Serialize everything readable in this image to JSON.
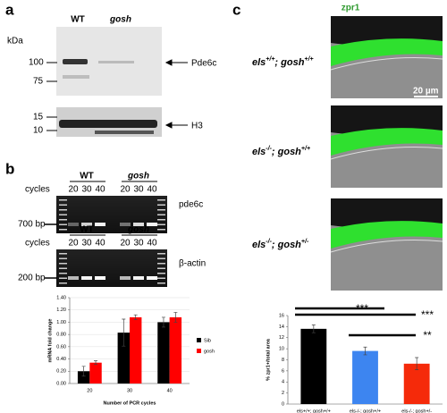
{
  "panel_labels": [
    "a",
    "b",
    "c"
  ],
  "blot": {
    "kda": "kDa",
    "lanes": [
      "WT",
      "gosh"
    ],
    "markers": [
      "100",
      "75",
      "15",
      "10"
    ],
    "bands": [
      "Pde6c",
      "H3"
    ]
  },
  "gels": [
    {
      "lanes": [
        "WT",
        "gosh"
      ],
      "cycles_label": "cycles",
      "cycles": [
        "20",
        "30",
        "40",
        "20",
        "30",
        "40"
      ],
      "marker": "700 bp",
      "gene": "pde6c"
    },
    {
      "lanes": [
        "WT",
        "gosh"
      ],
      "cycles_label": "cycles",
      "cycles": [
        "20",
        "30",
        "40",
        "20",
        "30",
        "40"
      ],
      "marker": "200 bp",
      "gene": "β-actin"
    }
  ],
  "micrographs": {
    "stain": "zpr1",
    "scale": "20 µm",
    "genotypes": [
      {
        "parts": [
          "els",
          "+/+",
          "; gosh",
          "+/+"
        ]
      },
      {
        "parts": [
          "els",
          "-/-",
          "; gosh",
          "+/+"
        ]
      },
      {
        "parts": [
          "els",
          "-/-",
          "; gosh",
          "+/-"
        ]
      }
    ]
  },
  "chart_data": [
    {
      "type": "bar",
      "y_label": "mRNA fold change",
      "x_label": "Number of PCR cycles",
      "categories": [
        "20",
        "30",
        "40"
      ],
      "series": [
        {
          "name": "Sib",
          "color": "#000000",
          "values": [
            0.2,
            0.83,
            1.0
          ],
          "errors": [
            0.08,
            0.22,
            0.08
          ]
        },
        {
          "name": "gosh",
          "color": "#ff0000",
          "values": [
            0.34,
            1.08,
            1.08
          ],
          "errors": [
            0.03,
            0.04,
            0.08
          ]
        }
      ],
      "ylim": [
        0,
        1.4
      ],
      "yticks": [
        {
          "value": 0,
          "label": "0.00"
        },
        {
          "value": 0.2,
          "label": "0.20"
        },
        {
          "value": 0.4,
          "label": "0.40"
        },
        {
          "value": 0.6,
          "label": "0.60"
        },
        {
          "value": 0.8,
          "label": "0.80"
        },
        {
          "value": 1,
          "label": "1.00"
        },
        {
          "value": 1.2,
          "label": "1.20"
        },
        {
          "value": 1.4,
          "label": "1.40"
        }
      ],
      "grid": true,
      "legend": "right"
    },
    {
      "type": "bar",
      "y_label": "% zpr1+/total area",
      "categories": [
        "els+/+; gosh+/+",
        "els-/-; gosh+/+",
        "els-/-; gosh+/-"
      ],
      "values": [
        13.6,
        9.6,
        7.3
      ],
      "errors": [
        0.7,
        0.7,
        1.1
      ],
      "colors": [
        "#000000",
        "#3d85f0",
        "#f52a0a"
      ],
      "ylim": [
        0,
        16
      ],
      "yticks": [
        0,
        2,
        4,
        6,
        8,
        10,
        12,
        14,
        16
      ],
      "grid": false,
      "annotations": [
        "***",
        "***",
        "**"
      ]
    }
  ]
}
